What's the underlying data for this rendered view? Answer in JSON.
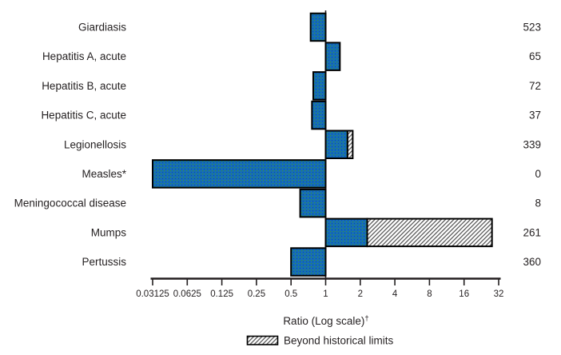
{
  "chart_data": {
    "type": "bar",
    "orientation": "horizontal",
    "x_scale": "log2",
    "baseline_ratio": 1,
    "xlabel": "Ratio (Log scale)",
    "xlabel_superscript": "†",
    "x_ticks": [
      0.03125,
      0.0625,
      0.125,
      0.25,
      0.5,
      1,
      2,
      4,
      8,
      16,
      32
    ],
    "x_tick_labels": [
      "0.03125",
      "0.0625",
      "0.125",
      "0.25",
      "0.5",
      "1",
      "2",
      "4",
      "8",
      "16",
      "32"
    ],
    "xlim": [
      0.03125,
      32
    ],
    "grid": "off",
    "legend_position": "bottom",
    "legend": [
      {
        "label": "Beyond historical limits",
        "style": "hatched"
      }
    ],
    "rows": [
      {
        "label": "Giardiasis",
        "ratio": 0.74,
        "beyond_limit": null,
        "cases": 523
      },
      {
        "label": "Hepatitis A, acute",
        "ratio": 1.33,
        "beyond_limit": null,
        "cases": 65
      },
      {
        "label": "Hepatitis B, acute",
        "ratio": 0.78,
        "beyond_limit": null,
        "cases": 72
      },
      {
        "label": "Hepatitis C, acute",
        "ratio": 0.76,
        "beyond_limit": null,
        "cases": 37
      },
      {
        "label": "Legionellosis",
        "ratio": 1.55,
        "beyond_limit": 1.72,
        "cases": 339
      },
      {
        "label": "Measles*",
        "ratio": 0.03125,
        "beyond_limit": null,
        "cases": 0
      },
      {
        "label": "Meningococcal disease",
        "ratio": 0.6,
        "beyond_limit": null,
        "cases": 8
      },
      {
        "label": "Mumps",
        "ratio": 2.3,
        "beyond_limit": 28,
        "cases": 261
      },
      {
        "label": "Pertussis",
        "ratio": 0.5,
        "beyond_limit": null,
        "cases": 360
      }
    ],
    "colors": {
      "bar_fill": "#156cba",
      "bar_speckle_green": "#35923f",
      "bar_speckle_dark": "#0c549c",
      "bar_border": "#000000",
      "hatch_line": "#4a4a4a",
      "axis": "#231f20",
      "text": "#231f20"
    }
  }
}
